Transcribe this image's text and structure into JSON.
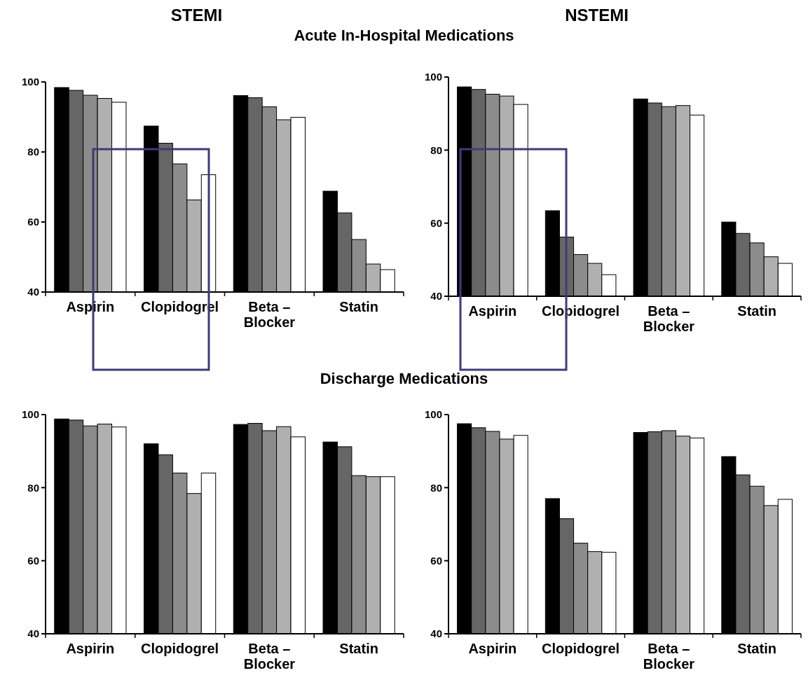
{
  "chart_data": [
    {
      "type": "bar",
      "title": "STEMI",
      "subtitle": "Acute In-Hospital Medications",
      "categories": [
        "Aspirin",
        "Clopidogrel",
        "Beta – Blocker",
        "Statin"
      ],
      "ylim": [
        40,
        100
      ],
      "yticks": [
        40,
        60,
        80,
        100
      ],
      "grid": false,
      "series": [
        {
          "color": "#000000",
          "values": [
            98.4,
            87.4,
            96.1,
            68.8
          ]
        },
        {
          "color": "#666666",
          "values": [
            97.6,
            82.5,
            95.5,
            62.6
          ]
        },
        {
          "color": "#8c8c8c",
          "values": [
            96.2,
            76.6,
            92.9,
            55.0
          ]
        },
        {
          "color": "#b0b0b0",
          "values": [
            95.3,
            66.3,
            89.2,
            48.0
          ]
        },
        {
          "color": "#ffffff",
          "values": [
            94.2,
            73.5,
            89.9,
            46.4
          ]
        }
      ]
    },
    {
      "type": "bar",
      "title": "NSTEMI",
      "categories": [
        "Aspirin",
        "Clopidogrel",
        "Beta – Blocker",
        "Statin"
      ],
      "ylim": [
        40,
        100
      ],
      "yticks": [
        40,
        60,
        80,
        100
      ],
      "grid": false,
      "series": [
        {
          "color": "#000000",
          "values": [
            97.3,
            63.4,
            94.0,
            60.3
          ]
        },
        {
          "color": "#666666",
          "values": [
            96.6,
            56.2,
            92.9,
            57.2
          ]
        },
        {
          "color": "#8c8c8c",
          "values": [
            95.3,
            51.4,
            91.9,
            54.6
          ]
        },
        {
          "color": "#b0b0b0",
          "values": [
            94.8,
            49.0,
            92.2,
            50.8
          ]
        },
        {
          "color": "#ffffff",
          "values": [
            92.5,
            45.9,
            89.6,
            49.0
          ]
        }
      ]
    },
    {
      "type": "bar",
      "subtitle": "Discharge Medications",
      "categories": [
        "Aspirin",
        "Clopidogrel",
        "Beta – Blocker",
        "Statin"
      ],
      "ylim": [
        40,
        100
      ],
      "yticks": [
        40,
        60,
        80,
        100
      ],
      "grid": false,
      "series": [
        {
          "color": "#000000",
          "values": [
            98.8,
            92.0,
            97.3,
            92.5
          ]
        },
        {
          "color": "#666666",
          "values": [
            98.5,
            89.0,
            97.6,
            91.2
          ]
        },
        {
          "color": "#8c8c8c",
          "values": [
            96.9,
            84.0,
            95.6,
            83.3
          ]
        },
        {
          "color": "#b0b0b0",
          "values": [
            97.4,
            78.4,
            96.7,
            83.0
          ]
        },
        {
          "color": "#ffffff",
          "values": [
            96.6,
            84.0,
            93.9,
            83.0
          ]
        }
      ]
    },
    {
      "type": "bar",
      "categories": [
        "Aspirin",
        "Clopidogrel",
        "Beta – Blocker",
        "Statin"
      ],
      "ylim": [
        40,
        100
      ],
      "yticks": [
        40,
        60,
        80,
        100
      ],
      "grid": false,
      "series": [
        {
          "color": "#000000",
          "values": [
            97.5,
            77.0,
            95.1,
            88.5
          ]
        },
        {
          "color": "#666666",
          "values": [
            96.4,
            71.5,
            95.3,
            83.5
          ]
        },
        {
          "color": "#8c8c8c",
          "values": [
            95.4,
            64.8,
            95.6,
            80.4
          ]
        },
        {
          "color": "#b0b0b0",
          "values": [
            93.3,
            62.5,
            94.1,
            75.1
          ]
        },
        {
          "color": "#ffffff",
          "values": [
            94.3,
            62.3,
            93.6,
            76.8
          ]
        }
      ]
    }
  ]
}
